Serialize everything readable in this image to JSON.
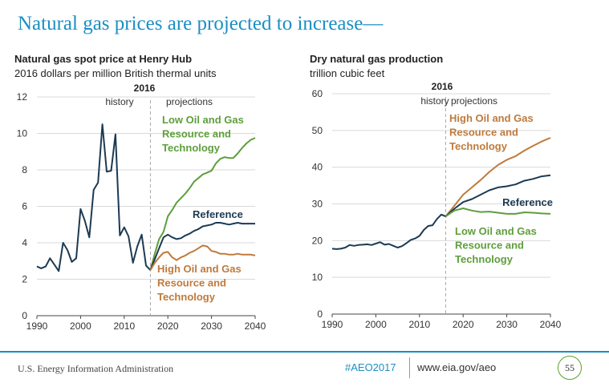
{
  "slide": {
    "title": "Natural gas prices are projected to increase—"
  },
  "footer": {
    "agency": "U.S. Energy Information Administration",
    "hashtag": "#AEO2017",
    "url": "www.eia.gov/aeo",
    "page_number": "55"
  },
  "colors": {
    "title_blue": "#1a8fc3",
    "reference": "#1c3a53",
    "low_oil_gas": "#5e9e3c",
    "high_oil_gas": "#bf7a3c",
    "divider": "#a8a8a8",
    "page_circle": "#5aa02c"
  },
  "chart_data": [
    {
      "type": "line",
      "title": "Natural gas spot price at Henry Hub",
      "subtitle": "2016 dollars per million British thermal units",
      "xlabel": "",
      "ylabel": "",
      "xlim": [
        1990,
        2040
      ],
      "ylim": [
        0,
        12
      ],
      "x_ticks": [
        1990,
        2000,
        2010,
        2020,
        2030,
        2040
      ],
      "y_ticks": [
        0,
        2,
        4,
        6,
        8,
        10,
        12
      ],
      "grid": "horizontal",
      "divider_year": 2016,
      "divider_label": "2016",
      "history_label": "history",
      "projections_label": "projections",
      "series": [
        {
          "name": "History",
          "color_key": "reference",
          "x": [
            1990,
            1991,
            1992,
            1993,
            1994,
            1995,
            1996,
            1997,
            1998,
            1999,
            2000,
            2001,
            2002,
            2003,
            2004,
            2005,
            2006,
            2007,
            2008,
            2009,
            2010,
            2011,
            2012,
            2013,
            2014,
            2015,
            2016
          ],
          "values": [
            2.7,
            2.6,
            2.7,
            3.15,
            2.8,
            2.45,
            4.0,
            3.6,
            2.95,
            3.15,
            5.85,
            5.2,
            4.3,
            6.9,
            7.3,
            10.5,
            7.9,
            7.95,
            9.95,
            4.4,
            4.85,
            4.35,
            2.9,
            3.8,
            4.45,
            2.75,
            2.5
          ]
        },
        {
          "name": "Low Oil and Gas Resource and Technology",
          "label": "Low Oil and Gas Resource and Technology",
          "color_key": "low_oil_gas",
          "x": [
            2016,
            2017,
            2018,
            2019,
            2020,
            2021,
            2022,
            2023,
            2024,
            2025,
            2026,
            2027,
            2028,
            2029,
            2030,
            2031,
            2032,
            2033,
            2034,
            2035,
            2036,
            2037,
            2038,
            2039,
            2040
          ],
          "values": [
            2.5,
            3.4,
            4.2,
            4.6,
            5.45,
            5.8,
            6.2,
            6.45,
            6.7,
            7.0,
            7.35,
            7.55,
            7.75,
            7.85,
            7.95,
            8.35,
            8.6,
            8.7,
            8.65,
            8.65,
            8.9,
            9.2,
            9.45,
            9.65,
            9.75
          ]
        },
        {
          "name": "Reference",
          "label": "Reference",
          "color_key": "reference",
          "x": [
            2016,
            2017,
            2018,
            2019,
            2020,
            2021,
            2022,
            2023,
            2024,
            2025,
            2026,
            2027,
            2028,
            2029,
            2030,
            2031,
            2032,
            2033,
            2034,
            2035,
            2036,
            2037,
            2038,
            2039,
            2040
          ],
          "values": [
            2.5,
            3.1,
            3.7,
            4.3,
            4.45,
            4.3,
            4.2,
            4.25,
            4.4,
            4.5,
            4.65,
            4.75,
            4.9,
            4.95,
            5.0,
            5.1,
            5.1,
            5.05,
            5.0,
            5.05,
            5.1,
            5.05,
            5.05,
            5.05,
            5.05
          ]
        },
        {
          "name": "High Oil and Gas Resource and Technology",
          "label": "High Oil and Gas Resource and Technology",
          "color_key": "high_oil_gas",
          "x": [
            2016,
            2017,
            2018,
            2019,
            2020,
            2021,
            2022,
            2023,
            2024,
            2025,
            2026,
            2027,
            2028,
            2029,
            2030,
            2031,
            2032,
            2033,
            2034,
            2035,
            2036,
            2037,
            2038,
            2039,
            2040
          ],
          "values": [
            2.5,
            2.9,
            3.2,
            3.45,
            3.5,
            3.2,
            3.05,
            3.2,
            3.3,
            3.45,
            3.55,
            3.7,
            3.85,
            3.8,
            3.55,
            3.5,
            3.4,
            3.4,
            3.35,
            3.35,
            3.4,
            3.35,
            3.35,
            3.35,
            3.3
          ]
        }
      ]
    },
    {
      "type": "line",
      "title": "Dry natural gas production",
      "subtitle": "trillion cubic feet",
      "xlabel": "",
      "ylabel": "",
      "xlim": [
        1990,
        2040
      ],
      "ylim": [
        0,
        60
      ],
      "x_ticks": [
        1990,
        2000,
        2010,
        2020,
        2030,
        2040
      ],
      "y_ticks": [
        0,
        10,
        20,
        30,
        40,
        50,
        60
      ],
      "grid": "horizontal",
      "divider_year": 2016,
      "divider_label": "2016",
      "history_label": "history",
      "projections_label": "projections",
      "series": [
        {
          "name": "History",
          "color_key": "reference",
          "x": [
            1990,
            1991,
            1992,
            1993,
            1994,
            1995,
            1996,
            1997,
            1998,
            1999,
            2000,
            2001,
            2002,
            2003,
            2004,
            2005,
            2006,
            2007,
            2008,
            2009,
            2010,
            2011,
            2012,
            2013,
            2014,
            2015,
            2016
          ],
          "values": [
            17.8,
            17.7,
            17.8,
            18.1,
            18.8,
            18.6,
            18.8,
            18.9,
            19.0,
            18.8,
            19.2,
            19.6,
            18.9,
            19.1,
            18.6,
            18.1,
            18.5,
            19.3,
            20.2,
            20.6,
            21.3,
            22.9,
            24.0,
            24.2,
            25.9,
            27.1,
            26.6
          ]
        },
        {
          "name": "High Oil and Gas Resource and Technology",
          "label": "High Oil and Gas Resource and Technology",
          "color_key": "high_oil_gas",
          "x": [
            2016,
            2018,
            2020,
            2022,
            2024,
            2026,
            2028,
            2030,
            2032,
            2034,
            2036,
            2038,
            2040
          ],
          "values": [
            26.6,
            29.5,
            32.5,
            34.5,
            36.5,
            38.7,
            40.6,
            42.0,
            43.0,
            44.5,
            45.8,
            47.0,
            48.0
          ]
        },
        {
          "name": "Reference",
          "label": "Reference",
          "color_key": "reference",
          "x": [
            2016,
            2018,
            2020,
            2022,
            2024,
            2026,
            2028,
            2030,
            2032,
            2034,
            2036,
            2038,
            2040
          ],
          "values": [
            26.6,
            28.7,
            30.5,
            31.3,
            32.5,
            33.7,
            34.5,
            34.8,
            35.3,
            36.3,
            36.8,
            37.5,
            37.8
          ]
        },
        {
          "name": "Low Oil and Gas Resource and Technology",
          "label": "Low Oil and Gas Resource and Technology",
          "color_key": "low_oil_gas",
          "x": [
            2016,
            2018,
            2020,
            2022,
            2024,
            2026,
            2028,
            2030,
            2032,
            2034,
            2036,
            2038,
            2040
          ],
          "values": [
            26.6,
            28.2,
            28.8,
            28.2,
            27.8,
            27.9,
            27.6,
            27.3,
            27.3,
            27.7,
            27.6,
            27.4,
            27.3
          ]
        }
      ]
    }
  ]
}
